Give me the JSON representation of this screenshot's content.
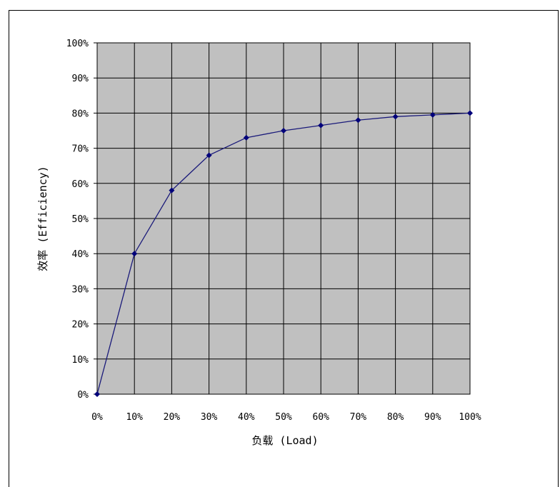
{
  "chart_data": {
    "type": "line",
    "title": "",
    "xlabel": "负载 (Load)",
    "ylabel": "效率 (Efficiency)",
    "x_ticks": [
      "0%",
      "10%",
      "20%",
      "30%",
      "40%",
      "50%",
      "60%",
      "70%",
      "80%",
      "90%",
      "100%"
    ],
    "y_ticks": [
      "0%",
      "10%",
      "20%",
      "30%",
      "40%",
      "50%",
      "60%",
      "70%",
      "80%",
      "90%",
      "100%"
    ],
    "xlim": [
      0,
      100
    ],
    "ylim": [
      0,
      100
    ],
    "grid": true,
    "series": [
      {
        "x": [
          0,
          10,
          20,
          30,
          40,
          50,
          60,
          70,
          80,
          90,
          100
        ],
        "y": [
          0,
          40,
          58,
          68,
          73,
          75,
          76.5,
          78,
          79,
          79.5,
          80
        ]
      }
    ],
    "colors": {
      "plot_background": "#c0c0c0",
      "line": "#1a1a7a",
      "marker": "#00007a",
      "grid": "#000000"
    }
  }
}
